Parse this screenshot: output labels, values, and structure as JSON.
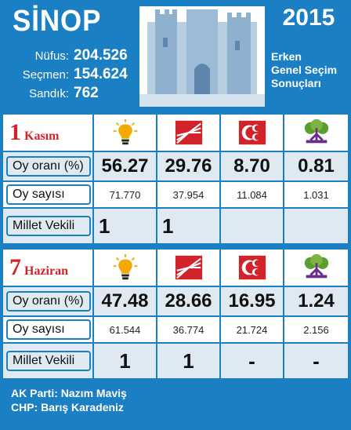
{
  "header": {
    "city": "SİNOP",
    "year": "2015",
    "stats": [
      {
        "label": "Nüfus:",
        "value": "204.526"
      },
      {
        "label": "Seçmen:",
        "value": "154.624"
      },
      {
        "label": "Sandık:",
        "value": "762"
      }
    ],
    "election_title": [
      "Erken",
      "Genel Seçim",
      "Sonuçları"
    ]
  },
  "parties": [
    {
      "icon": "akp-lightbulb-icon",
      "color": "#f2a900"
    },
    {
      "icon": "chp-six-arrows-icon",
      "color": "#d2232a"
    },
    {
      "icon": "mhp-crescents-icon",
      "color": "#d2232a"
    },
    {
      "icon": "hdp-tree-icon",
      "color": "#5a9e2f"
    }
  ],
  "elections": [
    {
      "day": "1",
      "month": "Kasım",
      "rate_label": "Oy oranı (%)",
      "count_label": "Oy sayısı",
      "mp_label": "Millet Vekili",
      "rates": [
        "56.27",
        "29.76",
        "8.70",
        "0.81"
      ],
      "counts": [
        "71.770",
        "37.954",
        "11.084",
        "1.031"
      ],
      "mps": [
        "1",
        "1",
        "",
        ""
      ]
    },
    {
      "day": "7",
      "month": "Haziran",
      "rate_label": "Oy oranı (%)",
      "count_label": "Oy sayısı",
      "mp_label": "Millet Vekili",
      "rates": [
        "47.48",
        "28.66",
        "16.95",
        "1.24"
      ],
      "counts": [
        "61.544",
        "36.774",
        "21.724",
        "2.156"
      ],
      "mps": [
        "1",
        "1",
        "-",
        "-"
      ]
    }
  ],
  "footer": [
    "AK Parti: Nazım Maviş",
    "CHP: Barış Karadeniz"
  ]
}
